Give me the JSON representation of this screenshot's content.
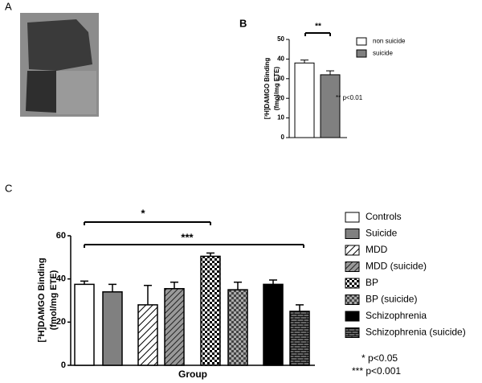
{
  "figure": {
    "panel_labels": [
      "A",
      "B",
      "C"
    ]
  },
  "chart_data": [
    {
      "type": "bar",
      "y_label": [
        "[³H]DAMGO Binding",
        "(fmol/mg ETE)"
      ],
      "categories": [
        "non suicide",
        "suicide"
      ],
      "values": [
        38,
        32
      ],
      "errors": [
        1.5,
        2
      ],
      "fills": [
        "#ffffff",
        "#808080"
      ],
      "ylim": [
        0,
        50
      ],
      "yticks": [
        0,
        10,
        20,
        30,
        40,
        50
      ],
      "annotations": [
        "**",
        "** p<0.01"
      ],
      "legend": "right"
    },
    {
      "type": "bar",
      "x_label": "Group",
      "y_label": [
        "[³H]DAMGO Binding",
        "(fmol/mg ETE)"
      ],
      "categories": [
        "Controls",
        "Suicide",
        "MDD",
        "MDD (suicide)",
        "BP",
        "BP (suicide)",
        "Schizophrenia",
        "Schizophrenia (suicide)"
      ],
      "values": [
        37.5,
        34,
        28,
        35.5,
        50.5,
        35,
        37.5,
        25
      ],
      "errors": [
        1.5,
        3.5,
        9,
        3,
        1.5,
        3.5,
        2,
        3
      ],
      "fills": [
        "#ffffff",
        "#808080",
        "hatch-light",
        "hatch-dark",
        "check-light",
        "check-dark",
        "#000000",
        "brick"
      ],
      "ylim": [
        0,
        60
      ],
      "yticks": [
        0,
        20,
        40,
        60
      ],
      "annotations": [
        "*",
        "***",
        "* p<0.05",
        "*** p<0.001"
      ],
      "legend": "right"
    }
  ]
}
